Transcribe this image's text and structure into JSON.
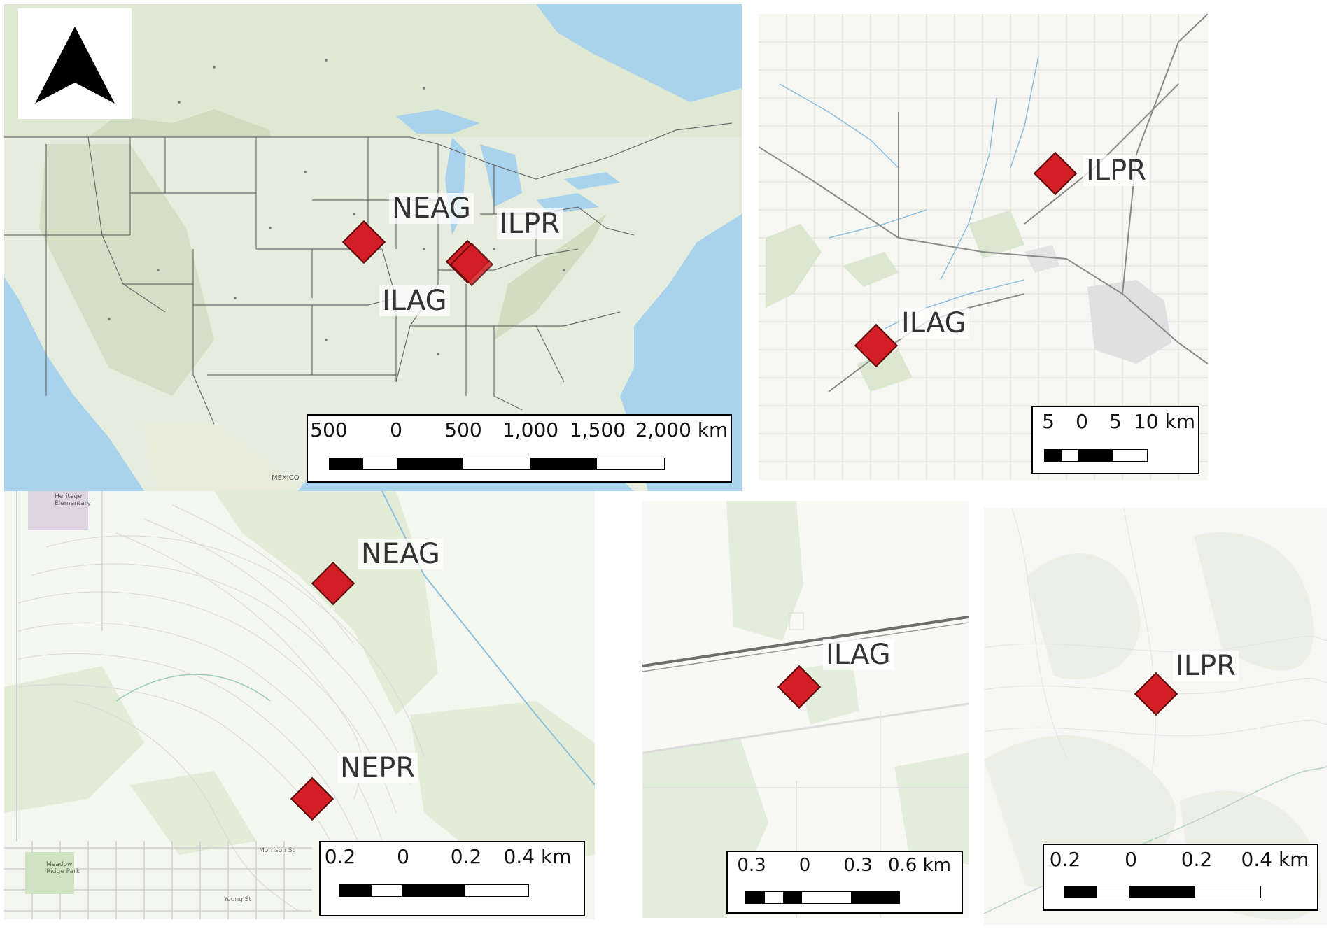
{
  "panels": {
    "overview": {
      "sites": [
        "NEAG",
        "ILPR",
        "ILAG"
      ],
      "map_text": [
        "MEXICO"
      ],
      "scalebar": {
        "ticks": [
          "500",
          "0",
          "500",
          "1,000",
          "1,500",
          "2,000 km"
        ]
      }
    },
    "regional": {
      "sites": [
        "ILPR",
        "ILAG"
      ],
      "scalebar": {
        "ticks": [
          "5",
          "0",
          "5",
          "10 km"
        ]
      }
    },
    "nebraska": {
      "sites": [
        "NEAG",
        "NEPR"
      ],
      "map_text": [
        "Heritage Elementary",
        "Meadow Ridge Park",
        "Young St",
        "Morrison St"
      ],
      "scalebar": {
        "ticks": [
          "0.2",
          "0",
          "0.2",
          "0.4 km"
        ]
      }
    },
    "ilag_site": {
      "sites": [
        "ILAG"
      ],
      "scalebar": {
        "ticks": [
          "0.3",
          "0",
          "0.3",
          "0.6 km"
        ]
      }
    },
    "ilpr_site": {
      "sites": [
        "ILPR"
      ],
      "scalebar": {
        "ticks": [
          "0.2",
          "0",
          "0.2",
          "0.4 km"
        ]
      }
    }
  },
  "colors": {
    "marker_fill": "#d51f26",
    "water": "#a9d3ec",
    "land": "#e4ebdc",
    "terrain": "#c9d9b8"
  },
  "icons": [
    "north-arrow-icon",
    "site-marker-icon"
  ]
}
